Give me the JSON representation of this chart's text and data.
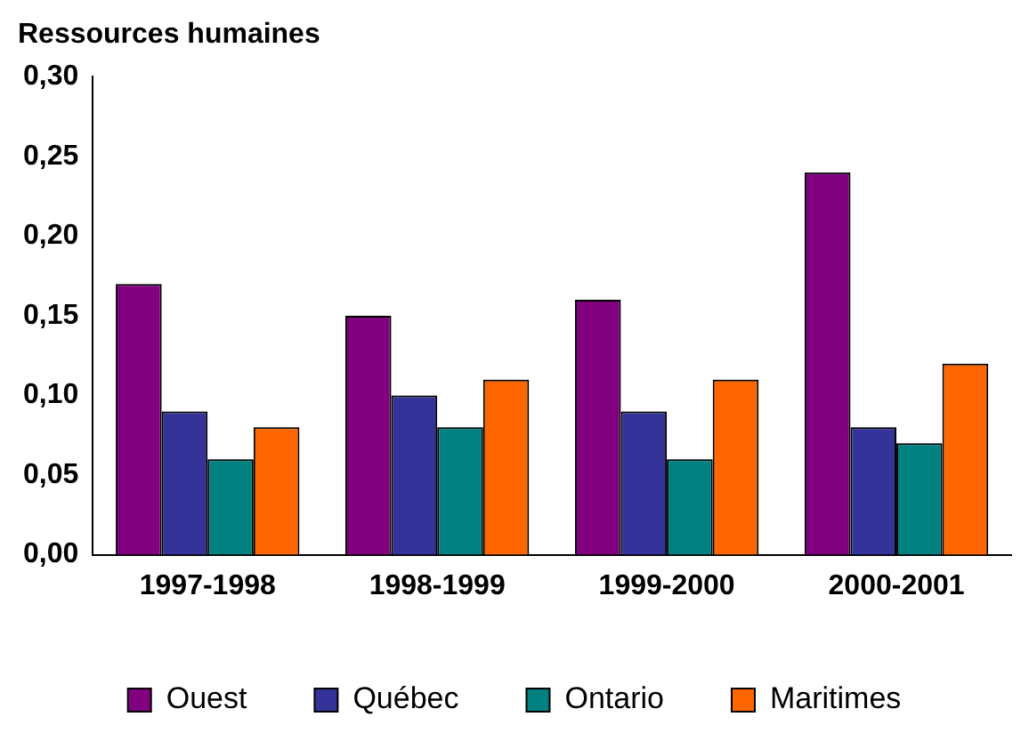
{
  "chart_data": {
    "type": "bar",
    "title": "Ressources humaines",
    "categories": [
      "1997-1998",
      "1998-1999",
      "1999-2000",
      "2000-2001"
    ],
    "series": [
      {
        "name": "Ouest",
        "color": "#800080",
        "values": [
          0.17,
          0.15,
          0.16,
          0.24
        ]
      },
      {
        "name": "Québec",
        "color": "#333399",
        "values": [
          0.09,
          0.1,
          0.09,
          0.08
        ]
      },
      {
        "name": "Ontario",
        "color": "#008080",
        "values": [
          0.06,
          0.08,
          0.06,
          0.07
        ]
      },
      {
        "name": "Maritimes",
        "color": "#ff6600",
        "values": [
          0.08,
          0.11,
          0.11,
          0.12
        ]
      }
    ],
    "ylim": [
      0,
      0.3
    ],
    "yticks": [
      {
        "value": 0,
        "label": "0,00"
      },
      {
        "value": 0.05,
        "label": "0,05"
      },
      {
        "value": 0.1,
        "label": "0,10"
      },
      {
        "value": 0.15,
        "label": "0,15"
      },
      {
        "value": 0.2,
        "label": "0,20"
      },
      {
        "value": 0.25,
        "label": "0,25"
      },
      {
        "value": 0.3,
        "label": "0,30"
      }
    ],
    "grid": false,
    "legend": "bottom"
  }
}
